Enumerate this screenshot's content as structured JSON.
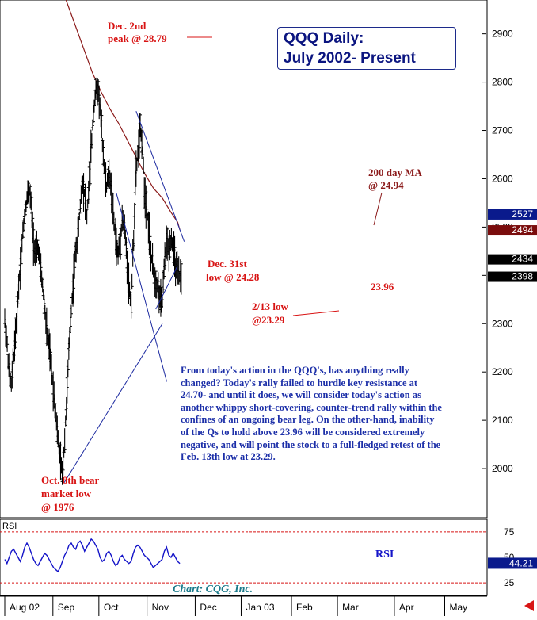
{
  "chart_data": {
    "type": "ohlc",
    "title_line1": "QQQ Daily:",
    "title_line2": "July 2002- Present",
    "price_axis": {
      "ticks": [
        "2900",
        "2800",
        "2700",
        "2600",
        "2500",
        "2400",
        "2300",
        "2200",
        "2100",
        "2000"
      ],
      "tick_values": [
        2900,
        2800,
        2700,
        2600,
        2500,
        2400,
        2300,
        2200,
        2100,
        2000
      ],
      "range": [
        1900,
        2970
      ]
    },
    "price_tags": [
      {
        "label": "2527",
        "value": 2527,
        "bg": "#0a1a8c",
        "fg": "#ffffff"
      },
      {
        "label": "2494",
        "value": 2494,
        "bg": "#7a0d0d",
        "fg": "#ffffff"
      },
      {
        "label": "2434",
        "value": 2434,
        "bg": "#000000",
        "fg": "#ffffff"
      },
      {
        "label": "2398",
        "value": 2398,
        "bg": "#000000",
        "fg": "#ffffff"
      }
    ],
    "time_axis": {
      "labels": [
        "Aug 02",
        "Sep",
        "Oct",
        "Nov",
        "Dec",
        "Jan 03",
        "Feb",
        "Mar",
        "Apr",
        "May"
      ],
      "positions": [
        14,
        36,
        57,
        79,
        101,
        122,
        145,
        166,
        192,
        215
      ]
    },
    "closes": [
      2305,
      2260,
      2195,
      2170,
      2230,
      2290,
      2360,
      2420,
      2480,
      2530,
      2560,
      2580,
      2545,
      2470,
      2440,
      2460,
      2420,
      2380,
      2330,
      2280,
      2250,
      2210,
      2160,
      2120,
      2060,
      2020,
      1985,
      2060,
      2150,
      2250,
      2330,
      2390,
      2450,
      2480,
      2540,
      2600,
      2570,
      2520,
      2590,
      2660,
      2740,
      2780,
      2790,
      2750,
      2680,
      2620,
      2580,
      2620,
      2580,
      2520,
      2480,
      2440,
      2470,
      2520,
      2500,
      2440,
      2380,
      2340,
      2460,
      2600,
      2650,
      2700,
      2680,
      2580,
      2540,
      2500,
      2440,
      2410,
      2390,
      2380,
      2350,
      2340,
      2420,
      2470,
      2450,
      2480,
      2460,
      2420,
      2400,
      2398
    ],
    "moving_average": {
      "label_line1": "200 day MA",
      "label_line2": "@ 24.94",
      "values": [
        [
          28,
          2970
        ],
        [
          32,
          2920
        ],
        [
          36,
          2870
        ],
        [
          40,
          2820
        ],
        [
          44,
          2780
        ],
        [
          48,
          2745
        ],
        [
          52,
          2715
        ],
        [
          56,
          2680
        ],
        [
          60,
          2645
        ],
        [
          64,
          2610
        ],
        [
          68,
          2580
        ],
        [
          72,
          2560
        ],
        [
          76,
          2530
        ],
        [
          79,
          2510
        ],
        [
          80,
          2494
        ]
      ]
    },
    "trend_lines": [
      {
        "name": "upper-channel",
        "color": "#1c2aa0",
        "points": [
          [
            60,
            2740
          ],
          [
            82,
            2470
          ]
        ]
      },
      {
        "name": "lower-channel",
        "color": "#1c2aa0",
        "points": [
          [
            51,
            2570
          ],
          [
            74,
            2180
          ]
        ]
      },
      {
        "name": "rising-support",
        "color": "#1c2aa0",
        "points": [
          [
            27,
            1970
          ],
          [
            72,
            2300
          ]
        ]
      },
      {
        "name": "short-support",
        "color": "#1c2aa0",
        "points": [
          [
            69,
            2330
          ],
          [
            79,
            2420
          ]
        ]
      }
    ],
    "annotations": [
      {
        "id": "dec2",
        "line1": "Dec. 2nd",
        "line2": "peak @ 28.79"
      },
      {
        "id": "dec31",
        "line1": "Dec. 31st",
        "line2": "low @ 24.28"
      },
      {
        "id": "feb13",
        "line1": "2/13  low",
        "line2": "@23.29"
      },
      {
        "id": "now",
        "line1": "23.96",
        "line2": ""
      },
      {
        "id": "oct8",
        "line1": "Oct. 8th bear",
        "line2": "market low",
        "line3": "@ 1976"
      }
    ],
    "commentary": "From today's action in the QQQ's, has anything really changed? Today's rally failed to hurdle key resistance at 24.70- and until it does, we will consider today's action as another whippy short-covering, counter-trend rally within the confines of an ongoing bear leg. On the other-hand, inability of the Qs to hold above 23.96 will be considered extremely negative, and will point the stock to a full-fledged retest of the Feb. 13th low at 23.29.",
    "rsi": {
      "panel_label": "RSI",
      "series_label": "RSI",
      "ticks": [
        "75",
        "50",
        "25"
      ],
      "tick_values": [
        75,
        50,
        25
      ],
      "range": [
        15,
        85
      ],
      "current": "44.21",
      "values": [
        48,
        44,
        50,
        56,
        58,
        54,
        50,
        46,
        52,
        60,
        64,
        60,
        54,
        48,
        44,
        42,
        46,
        50,
        54,
        52,
        48,
        44,
        40,
        38,
        36,
        40,
        46,
        52,
        56,
        62,
        64,
        60,
        58,
        64,
        66,
        62,
        56,
        60,
        64,
        68,
        66,
        62,
        58,
        50,
        46,
        48,
        54,
        56,
        52,
        46,
        42,
        44,
        50,
        52,
        48,
        46,
        44,
        46,
        54,
        60,
        62,
        60,
        56,
        52,
        50,
        48,
        44,
        40,
        42,
        44,
        46,
        48,
        56,
        60,
        52,
        50,
        54,
        50,
        46,
        44
      ]
    },
    "footer": "Chart: CQG, Inc."
  },
  "colors": {
    "bars": "#000000",
    "moving_average": "#8b1a1a",
    "trend": "#1c2aa0",
    "annotation_red": "#d81414",
    "annotation_dark_red": "#8b1a1a",
    "commentary_blue": "#1c2fa8",
    "rsi_line": "#1414c8",
    "rsi_bounds": "#d81414",
    "footer": "#1a7a8a",
    "title": "#0b1580"
  }
}
